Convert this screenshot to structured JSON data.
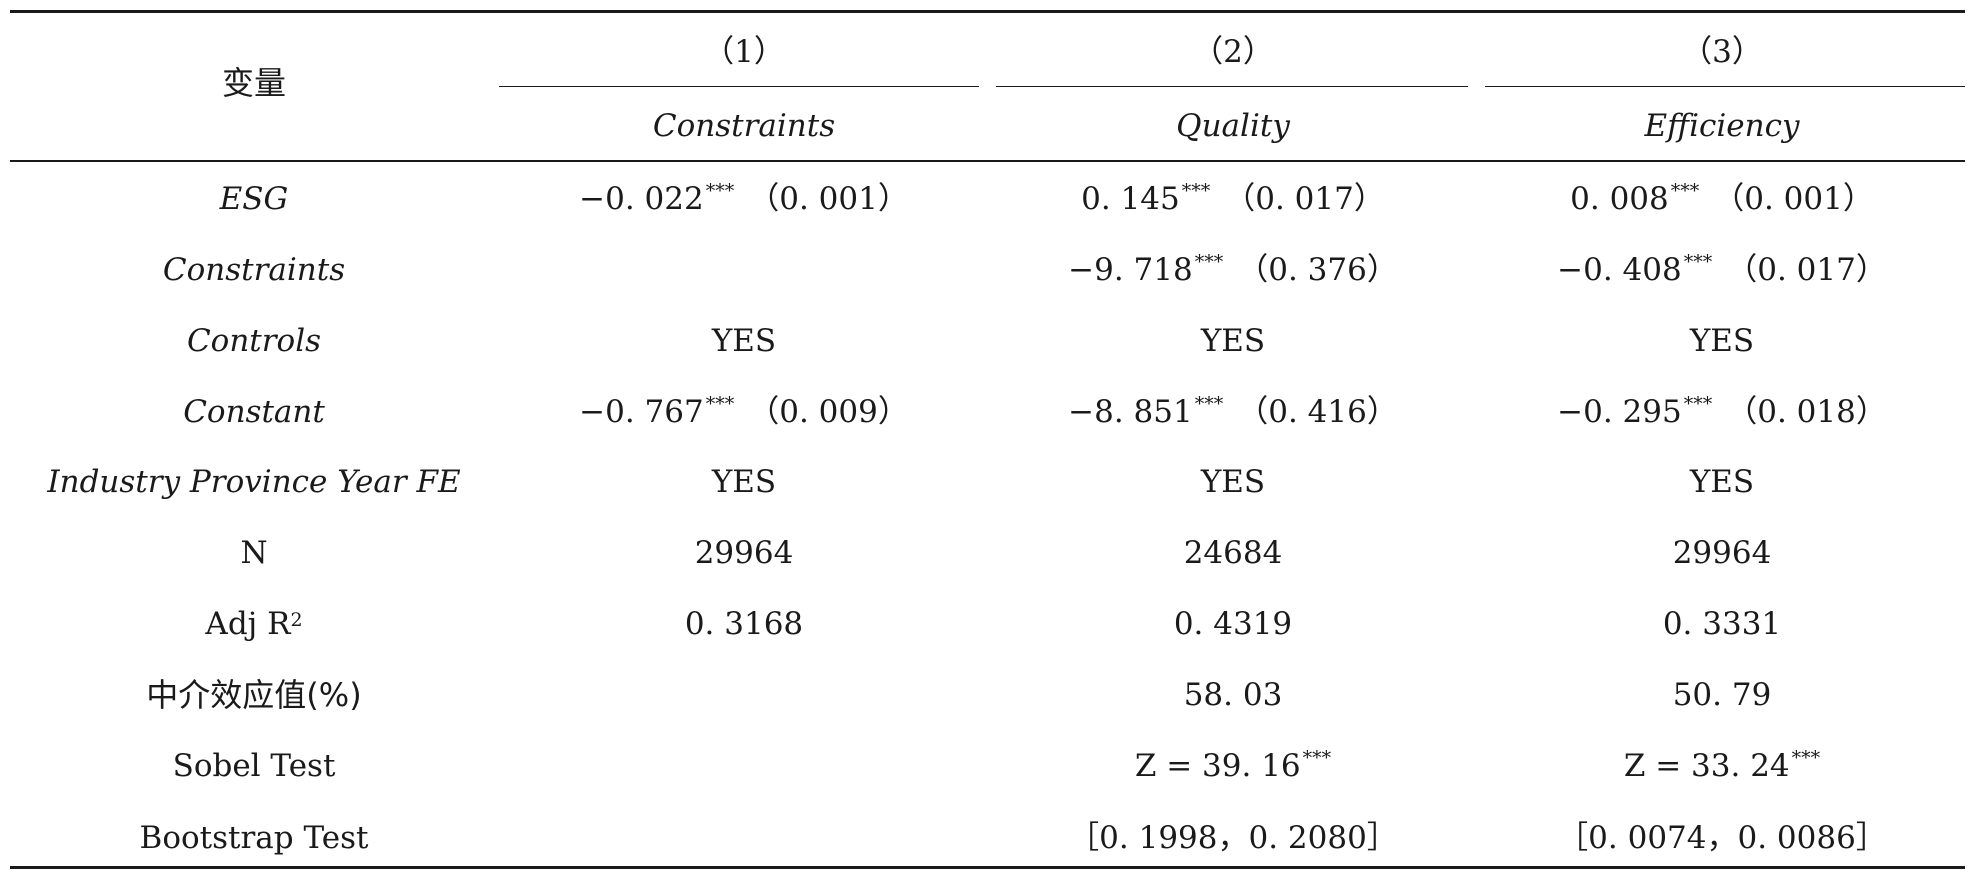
{
  "header": {
    "variable_label": "变量",
    "models": [
      {
        "number": "（1）",
        "dependent": "Constraints"
      },
      {
        "number": "（2）",
        "dependent": "Quality"
      },
      {
        "number": "（3）",
        "dependent": "Efficiency"
      }
    ]
  },
  "rows": [
    {
      "label": "ESG",
      "cells": [
        {
          "coef": "−0. 022",
          "stars": "***",
          "se": "（0. 001）"
        },
        {
          "coef": "0. 145",
          "stars": "***",
          "se": "（0. 017）"
        },
        {
          "coef": "0. 008",
          "stars": "***",
          "se": "（0. 001）"
        }
      ]
    },
    {
      "label": "Constraints",
      "cells": [
        null,
        {
          "coef": "−9. 718",
          "stars": "***",
          "se": "（0. 376）"
        },
        {
          "coef": "−0. 408",
          "stars": "***",
          "se": "（0. 017）"
        }
      ]
    },
    {
      "label": "Controls",
      "cells": [
        "YES",
        "YES",
        "YES"
      ]
    },
    {
      "label": "Constant",
      "cells": [
        {
          "coef": "−0. 767",
          "stars": "***",
          "se": "（0. 009）"
        },
        {
          "coef": "−8. 851",
          "stars": "***",
          "se": "（0. 416）"
        },
        {
          "coef": "−0. 295",
          "stars": "***",
          "se": "（0. 018）"
        }
      ]
    },
    {
      "label": "Industry Province Year FE",
      "cells": [
        "YES",
        "YES",
        "YES"
      ]
    },
    {
      "label": "N",
      "cells": [
        "29964",
        "24684",
        "29964"
      ]
    },
    {
      "label": "Adj R",
      "label_sup": "2",
      "cells": [
        "0. 3168",
        "0. 4319",
        "0. 3331"
      ]
    },
    {
      "label": "中介效应值(%)",
      "cells": [
        "",
        "58. 03",
        "50. 79"
      ]
    },
    {
      "label": "Sobel Test",
      "cells": [
        "",
        {
          "coef": "Z = 39. 16",
          "stars": "***"
        },
        {
          "coef": "Z = 33. 24",
          "stars": "***"
        }
      ]
    },
    {
      "label": "Bootstrap Test",
      "cells": [
        "",
        "［0. 1998，0. 2080］",
        "［0. 0074，0. 0086］"
      ]
    }
  ]
}
